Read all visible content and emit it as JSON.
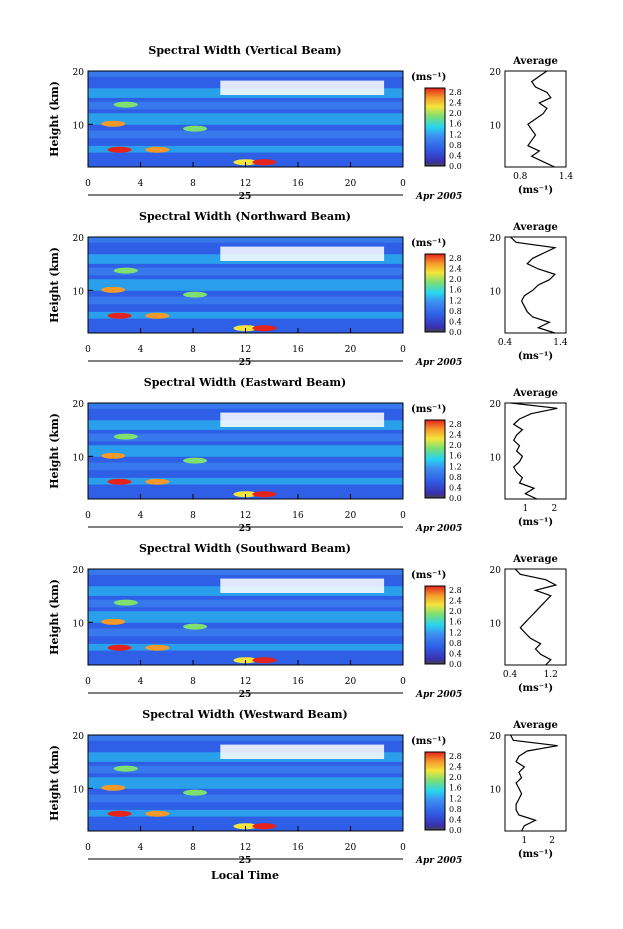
{
  "figure": {
    "xlabel": "Local Time"
  },
  "axis": {
    "ylabel": "Height (km)",
    "x_ticks": [
      "0",
      "4",
      "8",
      "12",
      "16",
      "20",
      "0"
    ],
    "y_ticks": [
      "20",
      "10"
    ],
    "date_day": "25",
    "date_month": "Apr 2005",
    "colorbar_unit": "(ms⁻¹)",
    "colorbar_ticks": [
      "2.8",
      "2.4",
      "2.0",
      "1.6",
      "1.2",
      "0.8",
      "0.4",
      "0.0"
    ],
    "avg_title": "Average",
    "avg_unit": "(ms⁻¹)"
  },
  "colors": {
    "blue": "#2f5fe6",
    "lightblue": "#3e8df0",
    "cyan": "#27d5f0",
    "green": "#7fe070",
    "yellow": "#f4e53c",
    "orange": "#f59a2a",
    "red": "#e4231d",
    "curve": "#000000"
  },
  "chart_data": [
    {
      "type": "heatmap",
      "title": "Spectral Width (Vertical Beam)",
      "xlim": [
        0,
        24
      ],
      "ylim": [
        2,
        20
      ],
      "clim": [
        0.0,
        3.0
      ],
      "avg_xticks": [
        "0.8",
        "1.4"
      ],
      "avg_xlim": [
        0.6,
        1.4
      ],
      "avg_profile": {
        "height": [
          2,
          3,
          4,
          5,
          6,
          7,
          8,
          9,
          10,
          11,
          12,
          13,
          14,
          15,
          16,
          17,
          18,
          19,
          20
        ],
        "value": [
          1.25,
          1.1,
          0.95,
          1.05,
          0.9,
          0.95,
          1.0,
          0.95,
          0.9,
          1.0,
          1.1,
          1.15,
          1.05,
          1.2,
          1.15,
          1.0,
          0.95,
          1.05,
          1.15
        ]
      }
    },
    {
      "type": "heatmap",
      "title": "Spectral Width (Northward Beam)",
      "xlim": [
        0,
        24
      ],
      "ylim": [
        2,
        20
      ],
      "clim": [
        0.0,
        3.0
      ],
      "avg_xticks": [
        "0.4",
        "1.4"
      ],
      "avg_xlim": [
        0.4,
        1.5
      ],
      "avg_profile": {
        "height": [
          2,
          3,
          4,
          5,
          6,
          7,
          8,
          9,
          10,
          11,
          12,
          13,
          14,
          15,
          16,
          17,
          18,
          19,
          20
        ],
        "value": [
          1.3,
          1.0,
          1.2,
          0.9,
          0.8,
          0.75,
          0.7,
          0.75,
          0.9,
          1.0,
          1.2,
          1.3,
          1.0,
          0.8,
          0.9,
          1.1,
          1.3,
          0.6,
          0.5
        ]
      }
    },
    {
      "type": "heatmap",
      "title": "Spectral Width (Eastward Beam)",
      "xlim": [
        0,
        24
      ],
      "ylim": [
        2,
        20
      ],
      "clim": [
        0.0,
        3.0
      ],
      "avg_xticks": [
        "1",
        "2"
      ],
      "avg_xlim": [
        0.3,
        2.4
      ],
      "avg_profile": {
        "height": [
          2,
          3,
          4,
          5,
          6,
          7,
          8,
          9,
          10,
          11,
          12,
          13,
          14,
          15,
          16,
          17,
          18,
          19,
          20
        ],
        "value": [
          1.4,
          1.0,
          1.3,
          0.8,
          0.9,
          0.7,
          0.6,
          0.8,
          0.9,
          0.7,
          0.8,
          0.6,
          0.7,
          0.9,
          0.6,
          0.8,
          1.2,
          2.1,
          0.5
        ]
      }
    },
    {
      "type": "heatmap",
      "title": "Spectral Width (Southward Beam)",
      "xlim": [
        0,
        24
      ],
      "ylim": [
        2,
        20
      ],
      "clim": [
        0.0,
        3.0
      ],
      "avg_xticks": [
        "0.4",
        "1.2"
      ],
      "avg_xlim": [
        0.3,
        1.5
      ],
      "avg_profile": {
        "height": [
          2,
          3,
          4,
          5,
          6,
          7,
          8,
          9,
          10,
          11,
          12,
          13,
          14,
          15,
          16,
          17,
          18,
          19,
          20
        ],
        "value": [
          1.1,
          1.2,
          1.0,
          0.9,
          1.0,
          0.8,
          0.7,
          0.6,
          0.7,
          0.8,
          0.9,
          1.0,
          1.1,
          1.2,
          0.9,
          1.3,
          1.1,
          0.6,
          0.5
        ]
      }
    },
    {
      "type": "heatmap",
      "title": "Spectral Width (Westward Beam)",
      "xlim": [
        0,
        24
      ],
      "ylim": [
        2,
        20
      ],
      "clim": [
        0.0,
        3.0
      ],
      "avg_xticks": [
        "1",
        "2"
      ],
      "avg_xlim": [
        0.3,
        2.5
      ],
      "avg_profile": {
        "height": [
          2,
          3,
          4,
          5,
          6,
          7,
          8,
          9,
          10,
          11,
          12,
          13,
          14,
          15,
          16,
          17,
          18,
          19,
          20
        ],
        "value": [
          0.9,
          1.0,
          1.4,
          0.8,
          0.7,
          0.7,
          0.8,
          0.9,
          0.8,
          0.7,
          0.9,
          0.8,
          1.0,
          0.7,
          0.8,
          1.1,
          2.2,
          0.6,
          0.5
        ]
      }
    }
  ]
}
